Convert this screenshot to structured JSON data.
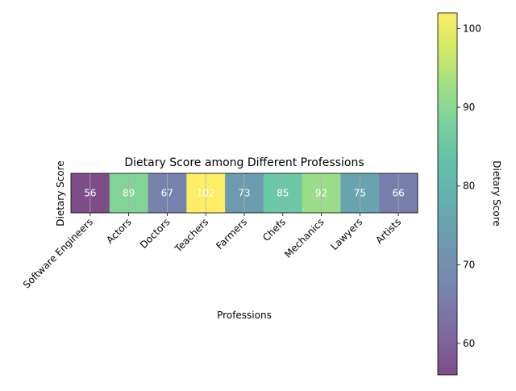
{
  "chart_data": {
    "type": "heatmap",
    "title": "Dietary Score among Different Professions",
    "xlabel": "Professions",
    "ylabel": "Dietary Score",
    "categories": [
      "Software Engineers",
      "Actors",
      "Doctors",
      "Teachers",
      "Farmers",
      "Chefs",
      "Mechanics",
      "Lawyers",
      "Artists"
    ],
    "values": [
      56,
      89,
      67,
      102,
      73,
      85,
      92,
      75,
      66
    ],
    "colorbar": {
      "label": "Dietary Score",
      "range": [
        56,
        102
      ],
      "ticks": [
        60,
        70,
        80,
        90,
        100
      ],
      "colormap": "viridis",
      "alpha": 0.7
    },
    "grid": true
  }
}
